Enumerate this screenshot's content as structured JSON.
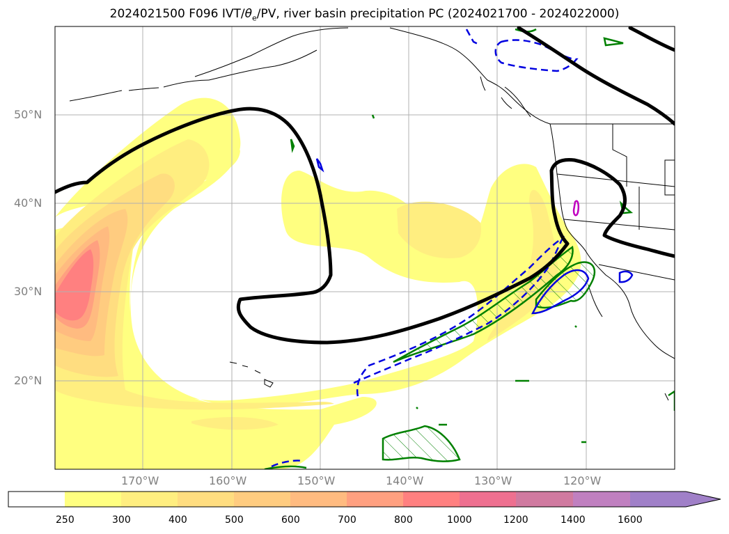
{
  "title": {
    "prefix": "2024021500 F096 IVT/",
    "theta": "θ",
    "sub": "e",
    "suffix": "/PV, river basin precipitation PC (2024021700 - 2024022000)"
  },
  "map": {
    "lon_range": [
      -180,
      -110
    ],
    "lat_range": [
      10,
      60
    ],
    "lat_labels": [
      "50°N",
      "40°N",
      "30°N",
      "20°N"
    ],
    "lon_labels": [
      "170°W",
      "160°W",
      "150°W",
      "140°W",
      "130°W",
      "120°W"
    ],
    "gridlines": true
  },
  "colorbar": {
    "levels": [
      "250",
      "300",
      "400",
      "500",
      "600",
      "700",
      "800",
      "1000",
      "1200",
      "1400",
      "1600"
    ],
    "colors": [
      "#ffffff",
      "#ffff80",
      "#ffee80",
      "#ffdd80",
      "#ffcc80",
      "#ffbb80",
      "#ffa080",
      "#ff8080",
      "#ee7090",
      "#d07aa0",
      "#c080c0",
      "#a080c8"
    ],
    "extend": "max"
  }
}
